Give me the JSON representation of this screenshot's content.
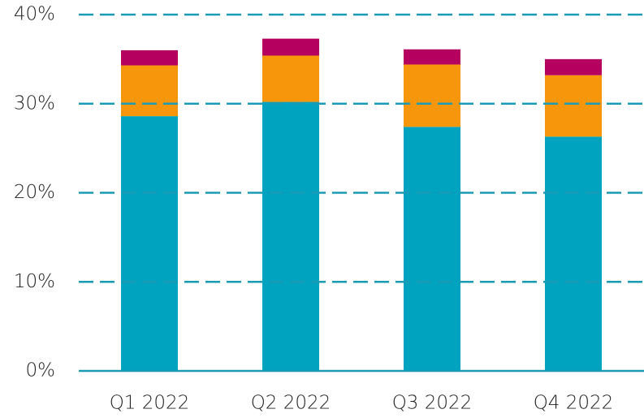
{
  "chart_data": {
    "type": "stacked_bar",
    "categories": [
      "Q1 2022",
      "Q2 2022",
      "Q3 2022",
      "Q4 2022"
    ],
    "series": [
      {
        "color": "#00a3bf",
        "values": [
          28.6,
          30.2,
          27.4,
          26.3
        ]
      },
      {
        "color": "#f7960a",
        "values": [
          5.7,
          5.2,
          7.0,
          6.9
        ]
      },
      {
        "color": "#b5005f",
        "values": [
          1.7,
          1.9,
          1.7,
          1.8
        ]
      }
    ],
    "ylim": [
      0,
      40
    ],
    "yticks": [
      {
        "value": 0,
        "label": "0%"
      },
      {
        "value": 10,
        "label": "10%"
      },
      {
        "value": 20,
        "label": "20%"
      },
      {
        "value": 30,
        "label": "30%"
      },
      {
        "value": 40,
        "label": "40%"
      }
    ],
    "grid": true,
    "grid_color": "#1a9bb5"
  }
}
